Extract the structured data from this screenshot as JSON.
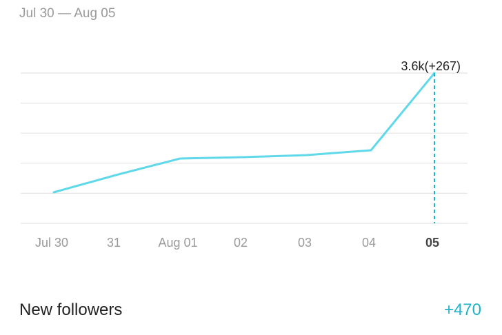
{
  "header": {
    "date_range": "Jul 30 — Aug 05"
  },
  "colors": {
    "line": "#5fd9ea",
    "accent": "#1fb3c9",
    "grid": "#e4e4e4",
    "tick": "#9a9a9a",
    "tick_active": "#444444"
  },
  "chart_data": {
    "type": "line",
    "categories": [
      "Jul 30",
      "31",
      "Aug 01",
      "02",
      "03",
      "04",
      "05"
    ],
    "active_category": "05",
    "series": [
      {
        "values": [
          null,
          null,
          null,
          null,
          null,
          null,
          3600
        ]
      }
    ],
    "annotation": {
      "category": "05",
      "label": "3.6k(+267)"
    },
    "grid": true,
    "gridline_count": 6
  },
  "summary": {
    "label": "New followers",
    "value": "+470"
  }
}
